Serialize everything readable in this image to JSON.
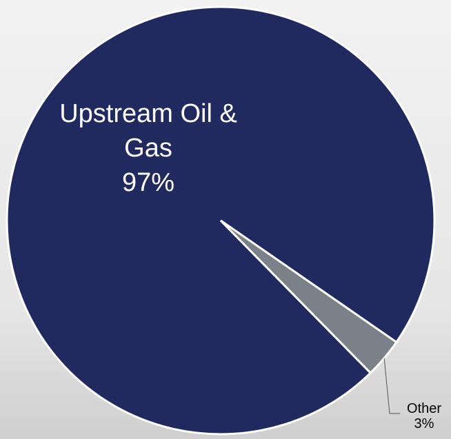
{
  "chart_data": {
    "type": "pie",
    "categories": [
      "Upstream Oil & Gas",
      "Other"
    ],
    "values": [
      97,
      3
    ],
    "value_labels": [
      "97%",
      "3%"
    ],
    "colors": [
      "#212a5e",
      "#7a8188"
    ]
  }
}
